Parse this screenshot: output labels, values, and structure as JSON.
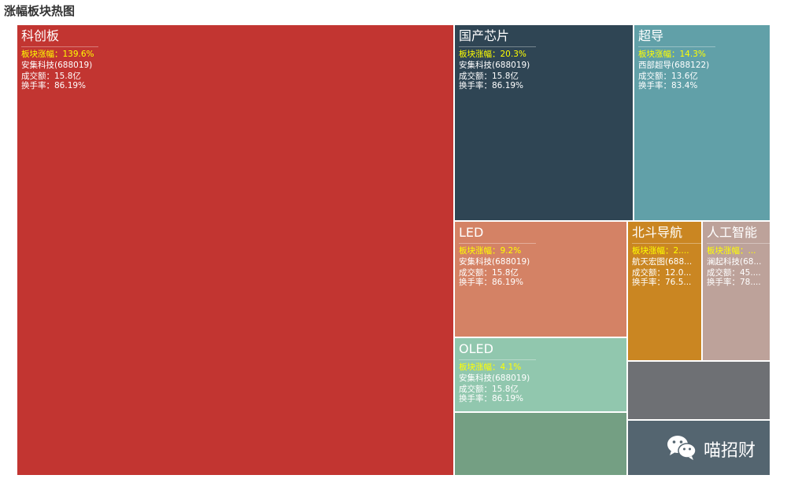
{
  "page_title": "涨幅板块热图",
  "watermark": {
    "icon": "wechat-icon",
    "text": "喵招财"
  },
  "chart_data": {
    "type": "treemap",
    "title": "涨幅板块热图",
    "value_key": "板块涨幅",
    "value_unit": "%",
    "sectors": [
      {
        "name": "科创板",
        "change_label": "板块涨幅：139.6%",
        "change_pct": 139.6,
        "stock": "安集科技(688019)",
        "turnover": "成交额：15.8亿",
        "turnover_rate": "换手率：86.19%",
        "color": "#c23531"
      },
      {
        "name": "国产芯片",
        "change_label": "板块涨幅：20.3%",
        "change_pct": 20.3,
        "stock": "安集科技(688019)",
        "turnover": "成交额：15.8亿",
        "turnover_rate": "换手率：86.19%",
        "color": "#2f4554"
      },
      {
        "name": "超导",
        "change_label": "板块涨幅：14.3%",
        "change_pct": 14.3,
        "stock": "西部超导(688122)",
        "turnover": "成交额：13.6亿",
        "turnover_rate": "换手率：83.4%",
        "color": "#61a0a8"
      },
      {
        "name": "LED",
        "change_label": "板块涨幅：9.2%",
        "change_pct": 9.2,
        "stock": "安集科技(688019)",
        "turnover": "成交额：15.8亿",
        "turnover_rate": "换手率：86.19%",
        "color": "#d48265"
      },
      {
        "name": "北斗导航",
        "change_label": "板块涨幅：2....",
        "change_pct": null,
        "stock": "航天宏图(688...",
        "turnover": "成交额：12.0...",
        "turnover_rate": "换手率：76.5...",
        "color": "#ca8622"
      },
      {
        "name": "人工智能",
        "change_label": "板块涨幅：...",
        "change_pct": null,
        "stock": "澜起科技(68...",
        "turnover": "成交额：45....",
        "turnover_rate": "换手率：78....",
        "color": "#bda29a"
      },
      {
        "name": "OLED",
        "change_label": "板块涨幅：4.1%",
        "change_pct": 4.1,
        "stock": "安集科技(688019)",
        "turnover": "成交额：15.8亿",
        "turnover_rate": "换手率：86.19%",
        "color": "#91c7ae"
      },
      {
        "name": "",
        "change_label": "",
        "change_pct": null,
        "stock": "",
        "turnover": "",
        "turnover_rate": "",
        "color": "#749f83"
      },
      {
        "name": "",
        "change_label": "",
        "change_pct": null,
        "stock": "",
        "turnover": "",
        "turnover_rate": "",
        "color": "#6e7074"
      },
      {
        "name": "",
        "change_label": "",
        "change_pct": null,
        "stock": "",
        "turnover": "",
        "turnover_rate": "",
        "color": "#546570"
      }
    ]
  }
}
